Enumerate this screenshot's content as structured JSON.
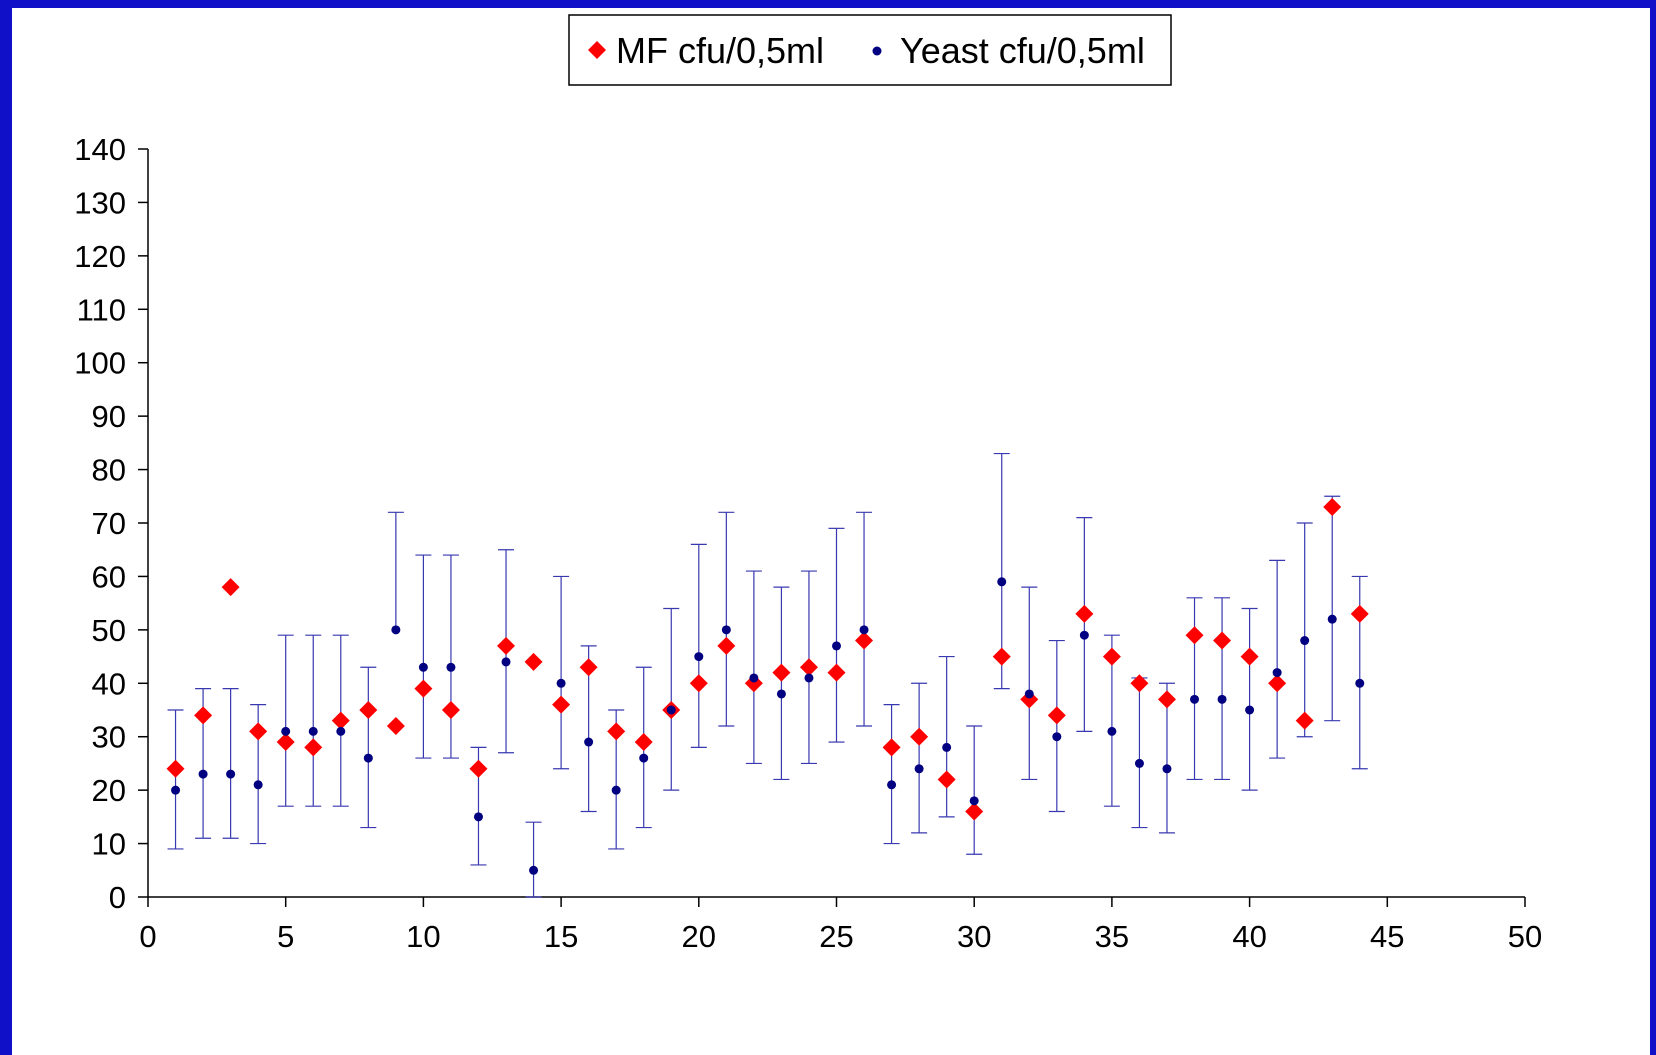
{
  "chart_data": {
    "type": "scatter",
    "xlim": [
      0,
      50
    ],
    "ylim": [
      0,
      140
    ],
    "x_ticks": [
      0,
      5,
      10,
      15,
      20,
      25,
      30,
      35,
      40,
      45,
      50
    ],
    "y_ticks": [
      0,
      10,
      20,
      30,
      40,
      50,
      60,
      70,
      80,
      90,
      100,
      110,
      120,
      130,
      140
    ],
    "grid": false,
    "legend_position": "top-center",
    "series": [
      {
        "name": "MF cfu/0,5ml",
        "color": "#ff0000",
        "marker": "diamond",
        "x": [
          1,
          2,
          3,
          4,
          5,
          6,
          7,
          8,
          9,
          10,
          11,
          12,
          13,
          14,
          15,
          16,
          17,
          18,
          19,
          20,
          21,
          22,
          23,
          24,
          25,
          26,
          27,
          28,
          29,
          30,
          31,
          32,
          33,
          34,
          35,
          36,
          37,
          38,
          39,
          40,
          41,
          42,
          43,
          44
        ],
        "y": [
          24,
          34,
          58,
          31,
          29,
          28,
          33,
          35,
          32,
          39,
          35,
          24,
          47,
          44,
          36,
          43,
          31,
          29,
          35,
          40,
          47,
          40,
          42,
          43,
          42,
          48,
          28,
          30,
          22,
          16,
          45,
          37,
          34,
          53,
          45,
          40,
          37,
          49,
          48,
          45,
          40,
          33,
          73,
          53
        ]
      },
      {
        "name": "Yeast cfu/0,5ml",
        "color": "#000080",
        "marker": "circle",
        "x": [
          1,
          2,
          3,
          4,
          5,
          6,
          7,
          8,
          9,
          10,
          11,
          12,
          13,
          14,
          15,
          16,
          17,
          18,
          19,
          20,
          21,
          22,
          23,
          24,
          25,
          26,
          27,
          28,
          29,
          30,
          31,
          32,
          33,
          34,
          35,
          36,
          37,
          38,
          39,
          40,
          41,
          42,
          43,
          44
        ],
        "y": [
          20,
          23,
          23,
          21,
          31,
          31,
          31,
          26,
          50,
          43,
          43,
          15,
          44,
          5,
          40,
          29,
          20,
          26,
          35,
          45,
          50,
          41,
          38,
          41,
          47,
          50,
          21,
          24,
          28,
          18,
          59,
          38,
          30,
          49,
          31,
          25,
          24,
          37,
          37,
          35,
          42,
          48,
          52,
          40
        ],
        "error_low": [
          9,
          11,
          11,
          10,
          17,
          17,
          17,
          13,
          null,
          26,
          26,
          6,
          27,
          0,
          24,
          16,
          9,
          13,
          20,
          28,
          32,
          25,
          22,
          25,
          29,
          32,
          10,
          12,
          15,
          8,
          39,
          22,
          16,
          31,
          17,
          13,
          12,
          22,
          22,
          20,
          26,
          30,
          33,
          24
        ],
        "error_high": [
          35,
          39,
          39,
          36,
          49,
          49,
          49,
          43,
          72,
          64,
          64,
          28,
          65,
          14,
          60,
          47,
          35,
          43,
          54,
          66,
          72,
          61,
          58,
          61,
          69,
          72,
          36,
          40,
          45,
          32,
          83,
          58,
          48,
          71,
          49,
          41,
          40,
          56,
          56,
          54,
          63,
          70,
          75,
          60
        ]
      }
    ]
  }
}
